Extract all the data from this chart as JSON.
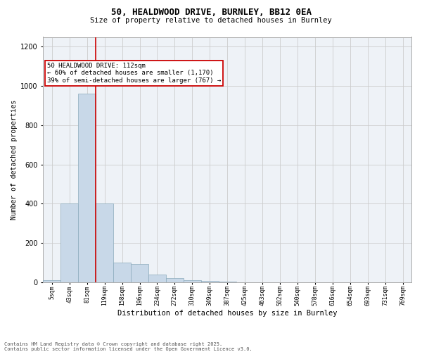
{
  "title1": "50, HEALDWOOD DRIVE, BURNLEY, BB12 0EA",
  "title2": "Size of property relative to detached houses in Burnley",
  "xlabel": "Distribution of detached houses by size in Burnley",
  "ylabel": "Number of detached properties",
  "categories": [
    "5sqm",
    "43sqm",
    "81sqm",
    "119sqm",
    "158sqm",
    "196sqm",
    "234sqm",
    "272sqm",
    "310sqm",
    "349sqm",
    "387sqm",
    "425sqm",
    "463sqm",
    "502sqm",
    "540sqm",
    "578sqm",
    "616sqm",
    "654sqm",
    "693sqm",
    "731sqm",
    "769sqm"
  ],
  "values": [
    10,
    400,
    960,
    400,
    100,
    95,
    40,
    20,
    10,
    7,
    3,
    0,
    0,
    0,
    0,
    0,
    0,
    0,
    0,
    0,
    0
  ],
  "bar_color": "#c8d8e8",
  "bar_edge_color": "#8aaabb",
  "vline_x": 2.5,
  "vline_color": "#cc0000",
  "annotation_text": "50 HEALDWOOD DRIVE: 112sqm\n← 60% of detached houses are smaller (1,170)\n39% of semi-detached houses are larger (767) →",
  "annotation_box_edgecolor": "#cc0000",
  "ylim": [
    0,
    1250
  ],
  "yticks": [
    0,
    200,
    400,
    600,
    800,
    1000,
    1200
  ],
  "grid_color": "#cccccc",
  "bg_color": "#eef2f7",
  "footer_text": "Contains HM Land Registry data © Crown copyright and database right 2025.\nContains public sector information licensed under the Open Government Licence v3.0.",
  "fig_width": 6.0,
  "fig_height": 5.0,
  "dpi": 100
}
